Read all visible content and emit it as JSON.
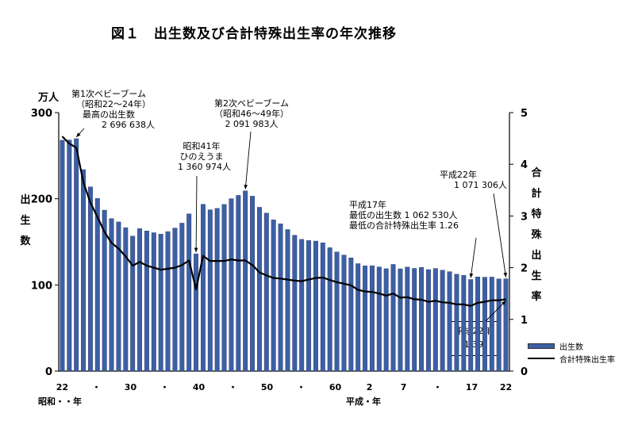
{
  "title": "図１　出生数及び合計特殊出生率の年次推移",
  "chart_data": {
    "type": "bar",
    "y_left_unit": "万人",
    "y_left_label": "出生数",
    "y_right_label": "合計特殊出生率",
    "ylim_left": [
      0,
      300
    ],
    "ylim_right": [
      0,
      5
    ],
    "y_left_ticks": [
      "0",
      "100",
      "200",
      "300"
    ],
    "y_right_ticks": [
      "0",
      "1",
      "2",
      "3",
      "4",
      "5"
    ],
    "x_ticks": [
      "22",
      "・",
      "30",
      "・",
      "40",
      "・",
      "50",
      "・",
      "60",
      "2",
      "7",
      "・",
      "17",
      "22"
    ],
    "x_era_showa": "昭和・・年",
    "x_era_heisei": "平成・年",
    "categories": [
      "S22",
      "S23",
      "S24",
      "S25",
      "S26",
      "S27",
      "S28",
      "S29",
      "S30",
      "S31",
      "S32",
      "S33",
      "S34",
      "S35",
      "S36",
      "S37",
      "S38",
      "S39",
      "S40",
      "S41",
      "S42",
      "S43",
      "S44",
      "S45",
      "S46",
      "S47",
      "S48",
      "S49",
      "S50",
      "S51",
      "S52",
      "S53",
      "S54",
      "S55",
      "S56",
      "S57",
      "S58",
      "S59",
      "S60",
      "S61",
      "S62",
      "S63",
      "H1",
      "H2",
      "H3",
      "H4",
      "H5",
      "H6",
      "H7",
      "H8",
      "H9",
      "H10",
      "H11",
      "H12",
      "H13",
      "H14",
      "H15",
      "H16",
      "H17",
      "H18",
      "H19",
      "H20",
      "H21",
      "H22"
    ],
    "series": [
      {
        "name": "出生数",
        "type": "bar",
        "axis": "left",
        "values": [
          267.9,
          268.2,
          269.7,
          233.8,
          213.8,
          200.5,
          186.8,
          177.0,
          173.1,
          166.5,
          156.7,
          165.3,
          162.6,
          160.6,
          158.9,
          161.9,
          166.0,
          171.7,
          182.4,
          136.1,
          193.6,
          187.2,
          188.9,
          193.4,
          200.1,
          203.9,
          209.2,
          203.0,
          190.1,
          183.3,
          175.5,
          170.9,
          164.3,
          157.7,
          152.9,
          151.5,
          150.9,
          148.9,
          143.2,
          138.3,
          134.7,
          131.4,
          124.7,
          122.2,
          122.3,
          120.9,
          118.8,
          123.8,
          118.7,
          120.7,
          119.2,
          120.3,
          117.8,
          119.1,
          117.1,
          115.4,
          112.4,
          111.1,
          106.3,
          109.3,
          109.0,
          109.1,
          107.0,
          107.1
        ]
      },
      {
        "name": "合計特殊出生率",
        "type": "line",
        "axis": "right",
        "values": [
          4.54,
          4.4,
          4.32,
          3.65,
          3.26,
          2.98,
          2.69,
          2.48,
          2.37,
          2.22,
          2.04,
          2.11,
          2.04,
          2.0,
          1.96,
          1.98,
          2.0,
          2.05,
          2.14,
          1.58,
          2.23,
          2.13,
          2.13,
          2.13,
          2.16,
          2.14,
          2.14,
          2.05,
          1.91,
          1.85,
          1.8,
          1.79,
          1.77,
          1.75,
          1.74,
          1.77,
          1.8,
          1.81,
          1.76,
          1.72,
          1.69,
          1.66,
          1.57,
          1.54,
          1.53,
          1.5,
          1.46,
          1.5,
          1.42,
          1.43,
          1.39,
          1.38,
          1.34,
          1.36,
          1.33,
          1.32,
          1.29,
          1.29,
          1.26,
          1.32,
          1.34,
          1.37,
          1.37,
          1.39
        ]
      }
    ],
    "annotations": {
      "boom1": [
        "第1次ベビーブーム",
        "（昭和22～24年）",
        "最高の出生数",
        "2 696 638人"
      ],
      "hinoe": [
        "昭和41年",
        "ひのえうま",
        "1 360 974人"
      ],
      "boom2": [
        "第2次ベビーブーム",
        "（昭和46～49年）",
        "2 091 983人"
      ],
      "h17": [
        "平成17年",
        "最低の出生数 1 062 530人",
        "最低の合計特殊出生率 1.26"
      ],
      "h22": [
        "平成22年",
        "1 071 306人"
      ],
      "h22rate": [
        "平成22年",
        "1.39"
      ]
    },
    "legend": [
      "出生数",
      "合計特殊出生率"
    ],
    "colors": {
      "bar": "#3d5fa5",
      "bar_edge": "#1f3566",
      "line": "#000000"
    }
  }
}
